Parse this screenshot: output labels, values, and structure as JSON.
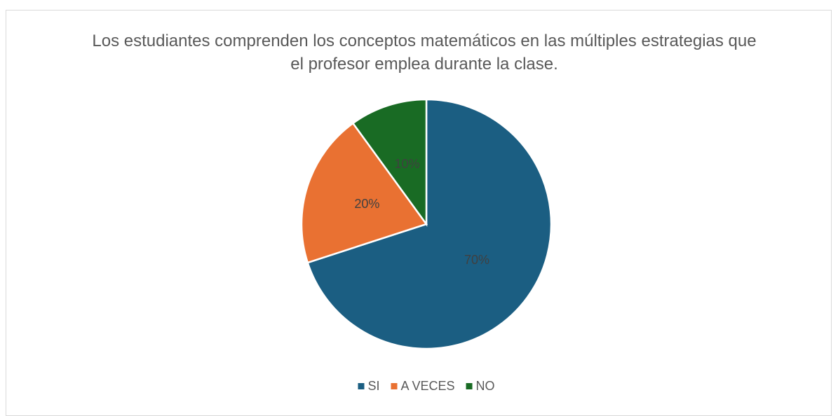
{
  "chart_data": {
    "type": "pie",
    "title": "Los estudiantes comprenden los conceptos matemáticos en las múltiples estrategias que el profesor emplea durante la clase.",
    "categories": [
      "SI",
      "A VECES",
      "NO"
    ],
    "values": [
      70,
      20,
      10
    ],
    "value_labels": [
      "70%",
      "20%",
      "10%"
    ],
    "colors": [
      "#1b5e82",
      "#e97132",
      "#196b24"
    ],
    "legend": "bottom"
  }
}
